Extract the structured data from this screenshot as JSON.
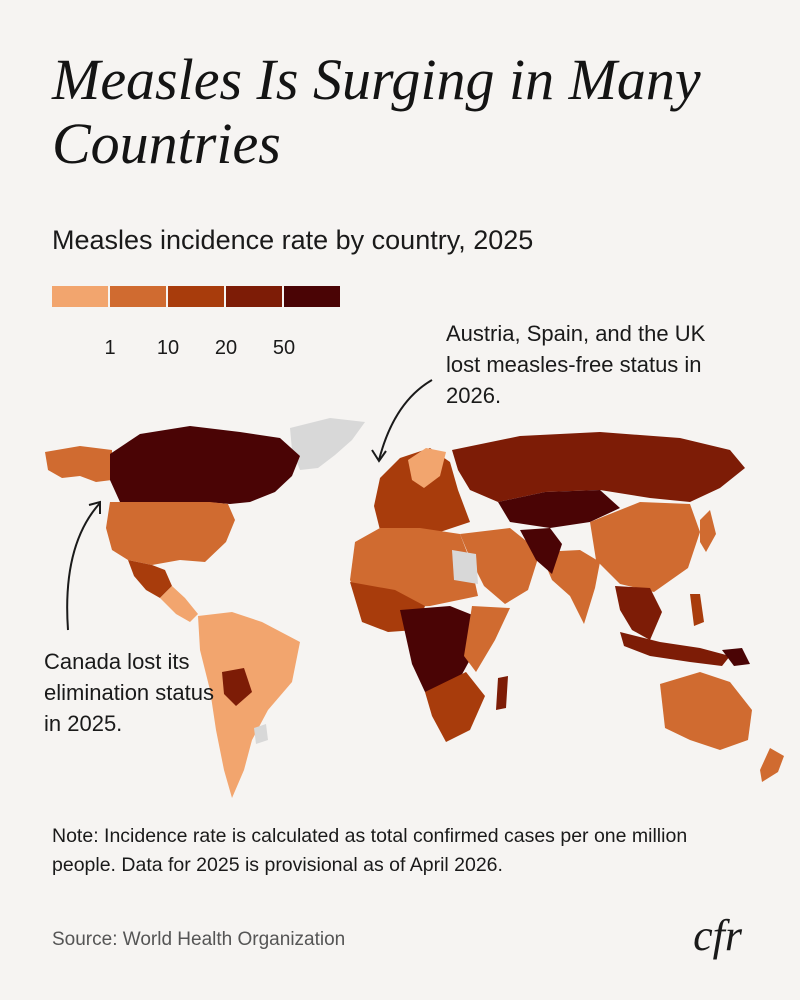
{
  "title": "Measles Is Surging in Many Countries",
  "subtitle": "Measles incidence rate by country, 2025",
  "legend": {
    "colors": [
      "#f2a56e",
      "#d06b30",
      "#a83c0c",
      "#7d1c06",
      "#4a0405"
    ],
    "ticks": [
      "1",
      "10",
      "20",
      "50"
    ],
    "no_data_color": "#d8d8d8"
  },
  "annotations": {
    "europe": "Austria, Spain, and the UK lost measles-free status in 2026.",
    "canada": "Canada lost its elimination status in 2025."
  },
  "note": "Note: Incidence rate is calculated as total confirmed cases per one million people. Data for 2025 is provisional as of April 2026.",
  "source": "Source: World Health Organization",
  "logo": "cfr"
}
